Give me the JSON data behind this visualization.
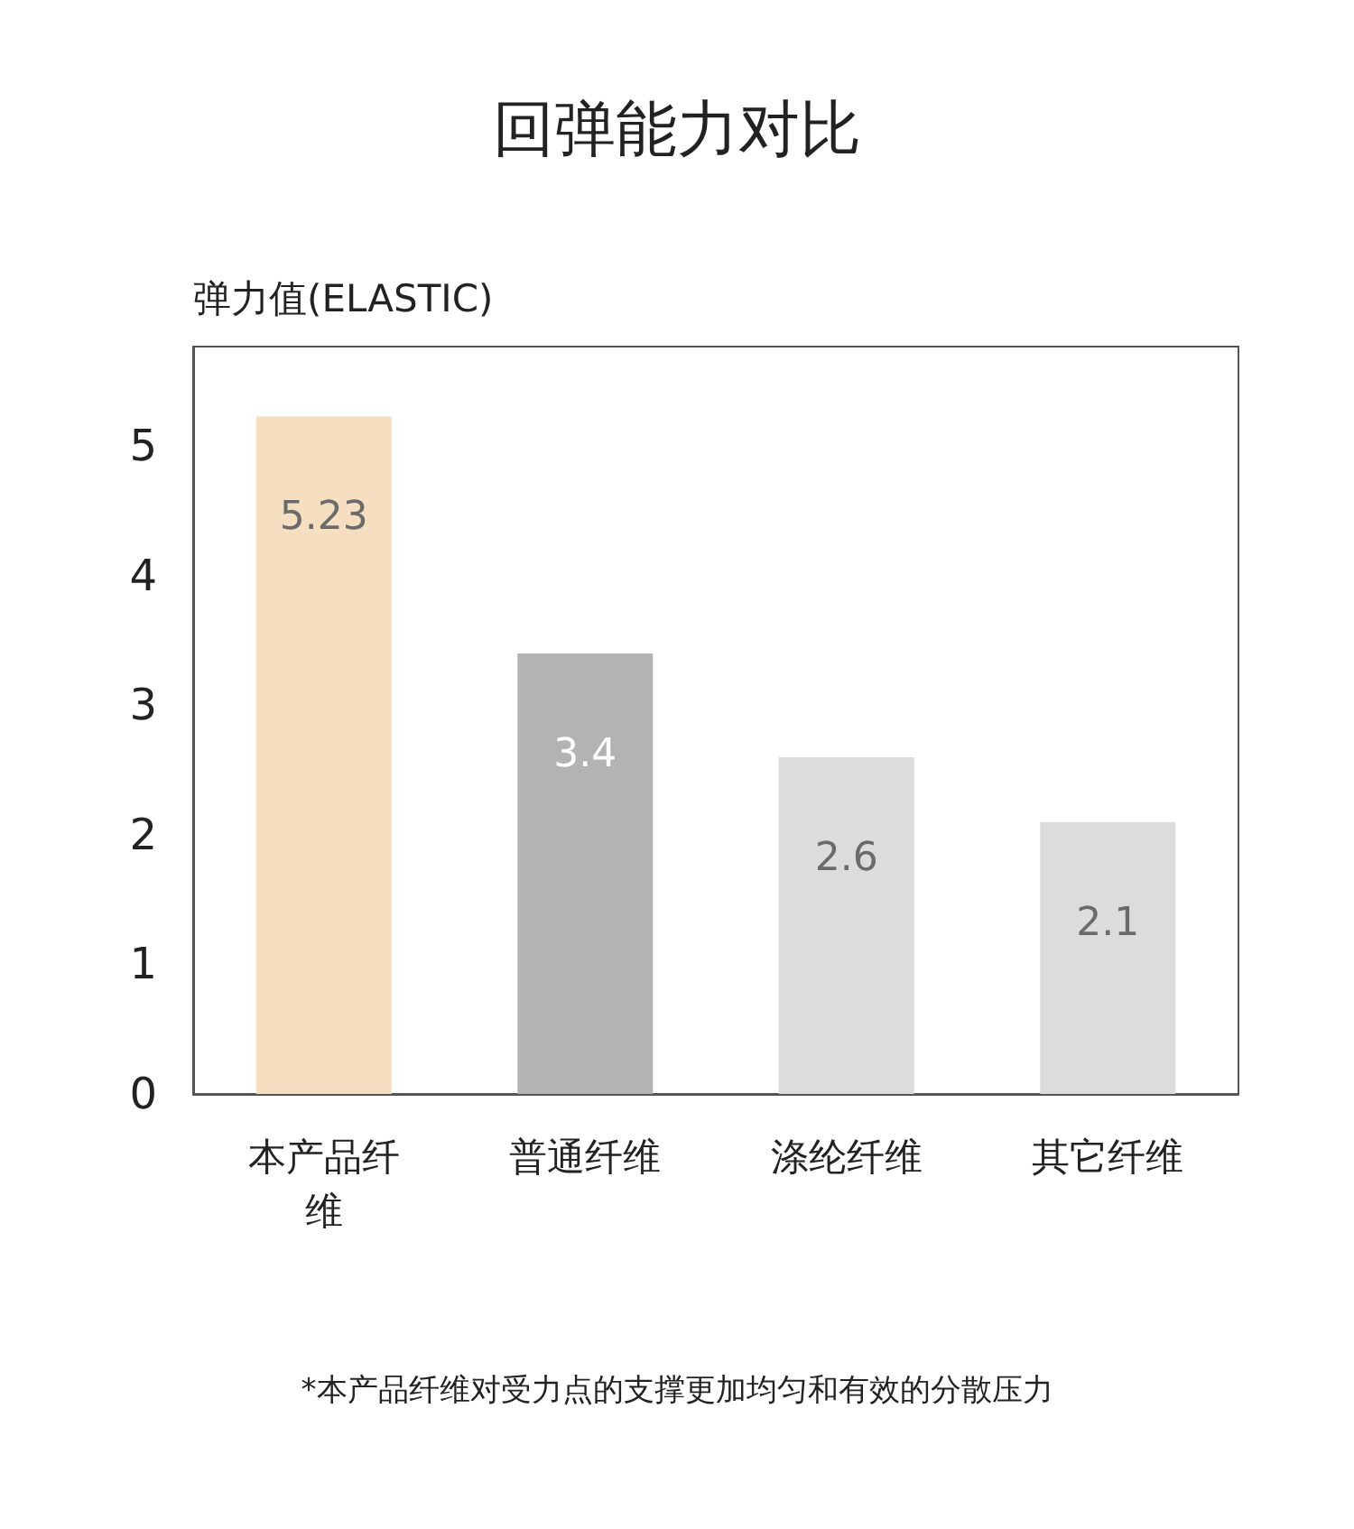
{
  "chart_data": {
    "type": "bar",
    "title": "回弹能力对比",
    "ylabel": "弹力值(ELASTIC)",
    "categories": [
      "本产品纤维",
      "普通纤维",
      "涤纶纤维",
      "其它纤维"
    ],
    "values": [
      5.23,
      3.4,
      2.6,
      2.1
    ],
    "colors": [
      "#f5dfc0",
      "#b3b3b3",
      "#dcdcdc",
      "#dcdcdc"
    ],
    "ylim": [
      0,
      5.77
    ],
    "yticks": [
      0,
      1,
      2,
      3,
      4,
      5
    ],
    "grid": false,
    "data_labels": true,
    "annotations": [
      "*本产品纤维对受力点的支撑更加均匀和有效的分散压力"
    ]
  }
}
